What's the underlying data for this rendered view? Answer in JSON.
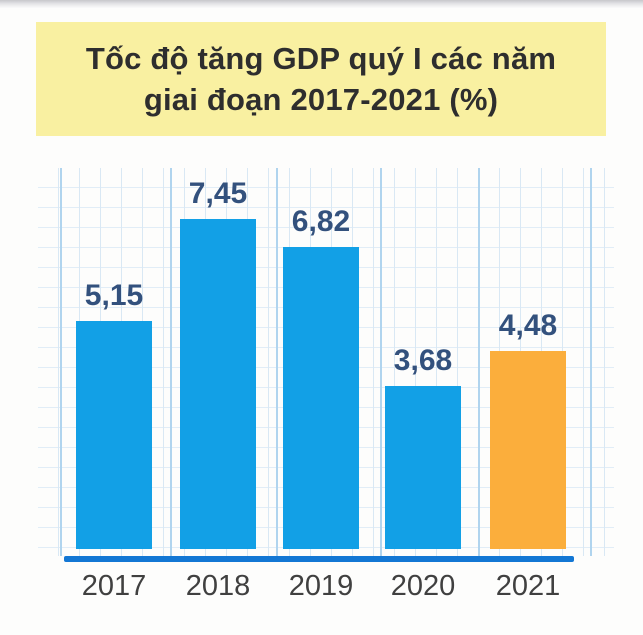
{
  "title": {
    "line1": "Tốc độ tăng GDP quý I các năm",
    "line2": "giai đoạn 2017-2021 (%)",
    "bg_color": "#f9f0a1",
    "text_color": "#2e2e2e"
  },
  "chart_data": {
    "type": "bar",
    "title": "Tốc độ tăng GDP quý I các năm giai đoạn 2017-2021 (%)",
    "categories": [
      "2017",
      "2018",
      "2019",
      "2020",
      "2021"
    ],
    "values": [
      5.15,
      7.45,
      6.82,
      3.68,
      4.48
    ],
    "value_labels": [
      "5,15",
      "7,45",
      "6,82",
      "3,68",
      "4,48"
    ],
    "series_name": "Tốc độ tăng GDP quý I (%)",
    "bar_colors": [
      "#12a0e6",
      "#12a0e6",
      "#12a0e6",
      "#12a0e6",
      "#fbae3c"
    ],
    "default_bar_color": "#12a0e6",
    "highlight_category": "2021",
    "highlight_color": "#fbae3c",
    "ylim": [
      0,
      8.8
    ],
    "xlabel": "",
    "ylabel": "",
    "grid": true,
    "legend": false,
    "value_label_color": "#33517d",
    "tick_label_color": "#404040",
    "axis_color": "#1377d4"
  }
}
